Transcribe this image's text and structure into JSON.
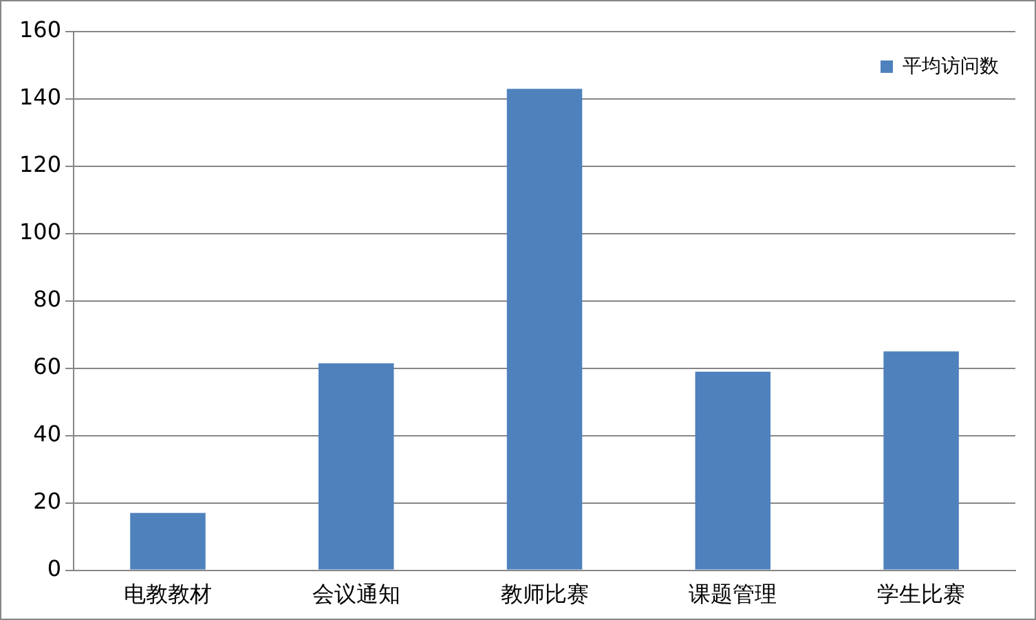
{
  "chart_data": {
    "type": "bar",
    "categories": [
      "电教教材",
      "会议通知",
      "教师比赛",
      "课题管理",
      "学生比赛"
    ],
    "series": [
      {
        "name": "平均访问数",
        "color": "#4f81bd",
        "values": [
          17,
          61.5,
          143,
          59,
          65
        ]
      }
    ],
    "ylim": [
      0,
      160
    ],
    "yticks": [
      0,
      20,
      40,
      60,
      80,
      100,
      120,
      140,
      160
    ],
    "grid": "y",
    "legend": "top right"
  }
}
